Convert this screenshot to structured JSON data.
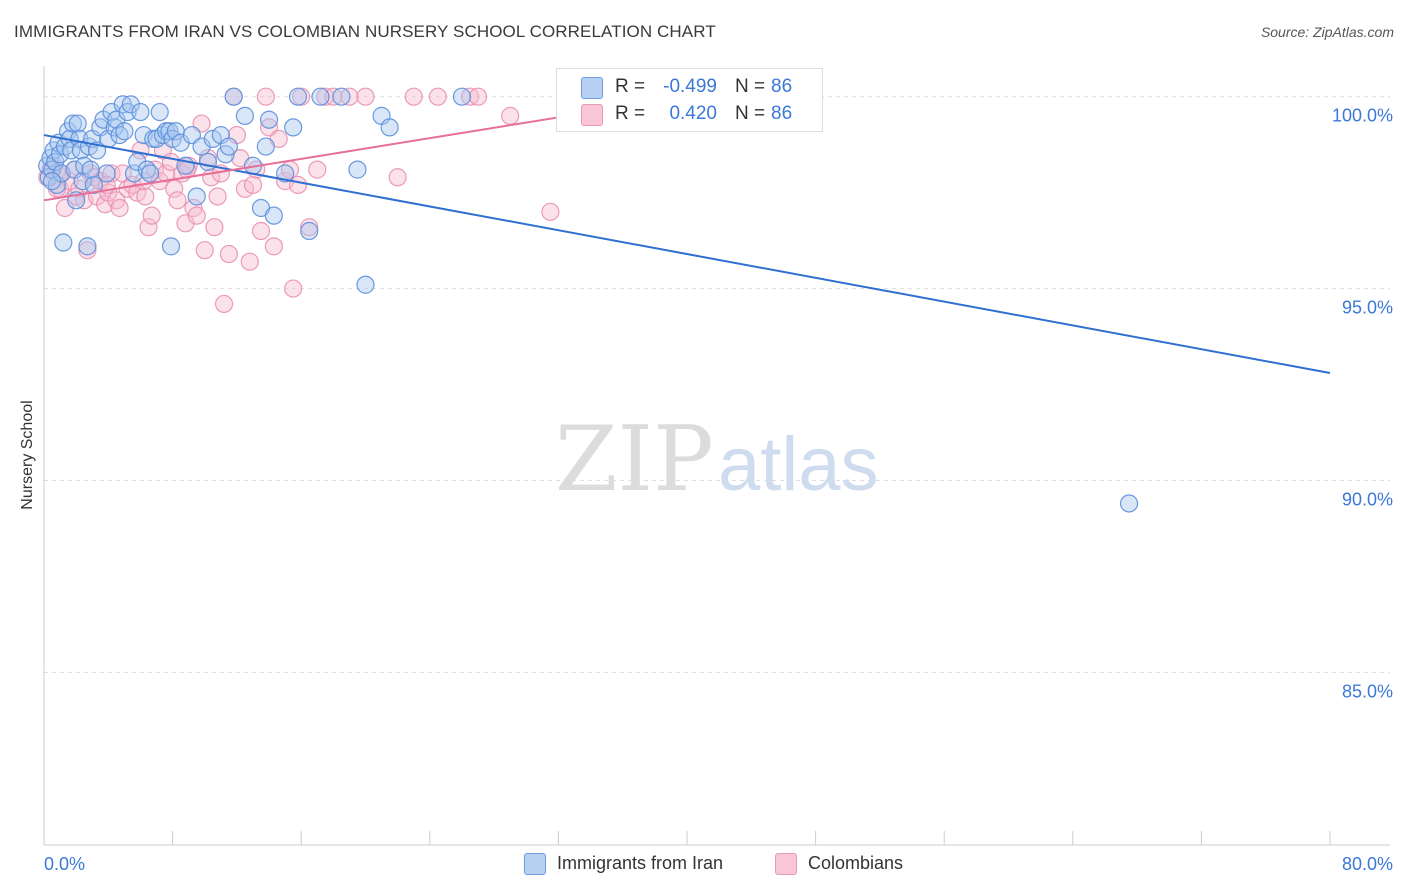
{
  "title": "IMMIGRANTS FROM IRAN VS COLOMBIAN NURSERY SCHOOL CORRELATION CHART",
  "source": "Source: ZipAtlas.com",
  "watermark": {
    "zip": "ZIP",
    "atlas": "atlas"
  },
  "legend": {
    "rows": [
      {
        "r_label": "R =",
        "r_value": "-0.499",
        "n_label": "N =",
        "n_value": "86"
      },
      {
        "r_label": "R =",
        "r_value": "0.420",
        "n_label": "N =",
        "n_value": "86"
      }
    ]
  },
  "bottom_legend": {
    "iran": "Immigrants from Iran",
    "colombians": "Colombians"
  },
  "colors": {
    "blue_fill": "#a9c8f0",
    "blue_stroke": "#5b8fdc",
    "blue_line": "#2f6fd0",
    "pink_fill": "#f6bdd0",
    "pink_stroke": "#e990b0",
    "pink_line": "#e76f9a",
    "axis_text": "#3b78d8",
    "grid": "#dedede"
  },
  "chart_data": {
    "type": "scatter",
    "title": "IMMIGRANTS FROM IRAN VS COLOMBIAN NURSERY SCHOOL CORRELATION CHART",
    "xlabel": "",
    "ylabel": "Nursery School",
    "xlim": [
      0,
      80
    ],
    "ylim": [
      80.5,
      100.8
    ],
    "x_tick_labels": [
      "0.0%",
      "80.0%"
    ],
    "y_ticks": [
      85,
      90,
      95,
      100
    ],
    "y_tick_labels": [
      "85.0%",
      "90.0%",
      "95.0%",
      "100.0%"
    ],
    "series": [
      {
        "name": "Immigrants from Iran",
        "r": -0.499,
        "n": 86,
        "trend": {
          "x": [
            0,
            80
          ],
          "y": [
            99.0,
            92.8
          ]
        },
        "points": [
          [
            0.2,
            98.2
          ],
          [
            0.3,
            97.9
          ],
          [
            0.4,
            98.4
          ],
          [
            0.5,
            98.1
          ],
          [
            0.6,
            98.6
          ],
          [
            0.7,
            98.3
          ],
          [
            0.8,
            97.7
          ],
          [
            0.9,
            98.8
          ],
          [
            1.0,
            98.5
          ],
          [
            1.1,
            98.0
          ],
          [
            1.2,
            96.2
          ],
          [
            1.3,
            98.7
          ],
          [
            1.5,
            99.1
          ],
          [
            1.6,
            98.9
          ],
          [
            1.7,
            98.6
          ],
          [
            1.8,
            99.3
          ],
          [
            1.9,
            98.1
          ],
          [
            2.0,
            97.3
          ],
          [
            2.1,
            99.3
          ],
          [
            2.2,
            98.9
          ],
          [
            2.3,
            98.6
          ],
          [
            2.4,
            97.8
          ],
          [
            2.5,
            98.2
          ],
          [
            2.7,
            96.1
          ],
          [
            2.8,
            98.7
          ],
          [
            3.0,
            98.9
          ],
          [
            3.1,
            97.7
          ],
          [
            3.3,
            98.6
          ],
          [
            3.5,
            99.2
          ],
          [
            3.7,
            99.4
          ],
          [
            3.9,
            98.0
          ],
          [
            4.0,
            98.9
          ],
          [
            4.2,
            99.6
          ],
          [
            4.4,
            99.2
          ],
          [
            4.5,
            99.4
          ],
          [
            4.7,
            99.0
          ],
          [
            4.9,
            99.8
          ],
          [
            5.0,
            99.1
          ],
          [
            5.2,
            99.6
          ],
          [
            5.4,
            99.8
          ],
          [
            5.6,
            98.0
          ],
          [
            5.8,
            98.3
          ],
          [
            6.0,
            99.6
          ],
          [
            6.2,
            99.0
          ],
          [
            6.4,
            98.1
          ],
          [
            6.6,
            98.0
          ],
          [
            6.8,
            98.9
          ],
          [
            7.0,
            98.9
          ],
          [
            7.2,
            99.6
          ],
          [
            7.4,
            99.0
          ],
          [
            7.6,
            99.1
          ],
          [
            7.8,
            99.1
          ],
          [
            7.9,
            96.1
          ],
          [
            8.0,
            98.9
          ],
          [
            8.2,
            99.1
          ],
          [
            8.5,
            98.8
          ],
          [
            8.8,
            98.2
          ],
          [
            9.2,
            99.0
          ],
          [
            9.5,
            97.4
          ],
          [
            9.8,
            98.7
          ],
          [
            10.2,
            98.3
          ],
          [
            10.5,
            98.9
          ],
          [
            11.0,
            99.0
          ],
          [
            11.3,
            98.5
          ],
          [
            11.5,
            98.7
          ],
          [
            11.8,
            100.0
          ],
          [
            12.5,
            99.5
          ],
          [
            13.0,
            98.2
          ],
          [
            13.5,
            97.1
          ],
          [
            13.8,
            98.7
          ],
          [
            14.0,
            99.4
          ],
          [
            14.3,
            96.9
          ],
          [
            15.0,
            98.0
          ],
          [
            15.5,
            99.2
          ],
          [
            15.8,
            100.0
          ],
          [
            16.5,
            96.5
          ],
          [
            17.2,
            100.0
          ],
          [
            18.5,
            100.0
          ],
          [
            19.5,
            98.1
          ],
          [
            20.0,
            95.1
          ],
          [
            21.0,
            99.5
          ],
          [
            21.5,
            99.2
          ],
          [
            26.0,
            100.0
          ],
          [
            67.5,
            89.4
          ],
          [
            0.5,
            97.8
          ],
          [
            2.9,
            98.1
          ]
        ]
      },
      {
        "name": "Colombians",
        "r": 0.42,
        "n": 86,
        "trend": {
          "x": [
            0,
            40
          ],
          "y": [
            97.3,
            100.0
          ]
        },
        "points": [
          [
            0.2,
            97.9
          ],
          [
            0.4,
            98.1
          ],
          [
            0.6,
            98.2
          ],
          [
            0.8,
            98.0
          ],
          [
            1.0,
            97.6
          ],
          [
            1.3,
            97.1
          ],
          [
            1.6,
            97.8
          ],
          [
            1.9,
            98.1
          ],
          [
            2.0,
            97.4
          ],
          [
            2.2,
            97.6
          ],
          [
            2.5,
            97.3
          ],
          [
            2.7,
            96.0
          ],
          [
            2.9,
            98.0
          ],
          [
            3.1,
            97.9
          ],
          [
            3.3,
            97.4
          ],
          [
            3.5,
            97.8
          ],
          [
            3.8,
            97.2
          ],
          [
            4.0,
            97.5
          ],
          [
            4.2,
            98.0
          ],
          [
            4.5,
            97.3
          ],
          [
            4.7,
            97.1
          ],
          [
            4.9,
            98.0
          ],
          [
            5.2,
            97.6
          ],
          [
            5.5,
            97.7
          ],
          [
            5.8,
            97.5
          ],
          [
            6.0,
            98.6
          ],
          [
            6.3,
            97.4
          ],
          [
            6.5,
            96.6
          ],
          [
            6.7,
            96.9
          ],
          [
            6.9,
            98.1
          ],
          [
            7.2,
            97.8
          ],
          [
            7.4,
            98.6
          ],
          [
            7.6,
            98.0
          ],
          [
            7.9,
            98.3
          ],
          [
            8.1,
            97.6
          ],
          [
            8.3,
            97.3
          ],
          [
            8.6,
            98.0
          ],
          [
            8.8,
            96.7
          ],
          [
            9.0,
            98.2
          ],
          [
            9.3,
            97.1
          ],
          [
            9.5,
            96.9
          ],
          [
            9.8,
            99.3
          ],
          [
            10.0,
            96.0
          ],
          [
            10.2,
            98.4
          ],
          [
            10.4,
            97.9
          ],
          [
            10.6,
            96.6
          ],
          [
            10.8,
            97.4
          ],
          [
            11.0,
            98.0
          ],
          [
            11.2,
            94.6
          ],
          [
            11.5,
            95.9
          ],
          [
            11.8,
            100.0
          ],
          [
            12.0,
            99.0
          ],
          [
            12.2,
            98.4
          ],
          [
            12.5,
            97.6
          ],
          [
            12.8,
            95.7
          ],
          [
            13.0,
            97.7
          ],
          [
            13.2,
            98.1
          ],
          [
            13.5,
            96.5
          ],
          [
            13.8,
            100.0
          ],
          [
            14.0,
            99.2
          ],
          [
            14.3,
            96.1
          ],
          [
            14.6,
            98.9
          ],
          [
            15.0,
            97.8
          ],
          [
            15.3,
            98.1
          ],
          [
            15.5,
            95.0
          ],
          [
            15.8,
            97.7
          ],
          [
            16.0,
            100.0
          ],
          [
            16.5,
            96.6
          ],
          [
            17.0,
            98.1
          ],
          [
            17.5,
            100.0
          ],
          [
            18.0,
            100.0
          ],
          [
            19.0,
            100.0
          ],
          [
            20.0,
            100.0
          ],
          [
            22.0,
            97.9
          ],
          [
            23.0,
            100.0
          ],
          [
            24.5,
            100.0
          ],
          [
            26.5,
            100.0
          ],
          [
            27.0,
            100.0
          ],
          [
            29.0,
            99.5
          ],
          [
            31.5,
            97.0
          ],
          [
            32.5,
            100.0
          ],
          [
            1.0,
            98.0
          ],
          [
            0.8,
            97.6
          ],
          [
            3.9,
            97.7
          ],
          [
            6.2,
            97.8
          ],
          [
            8.9,
            98.1
          ]
        ]
      }
    ]
  }
}
